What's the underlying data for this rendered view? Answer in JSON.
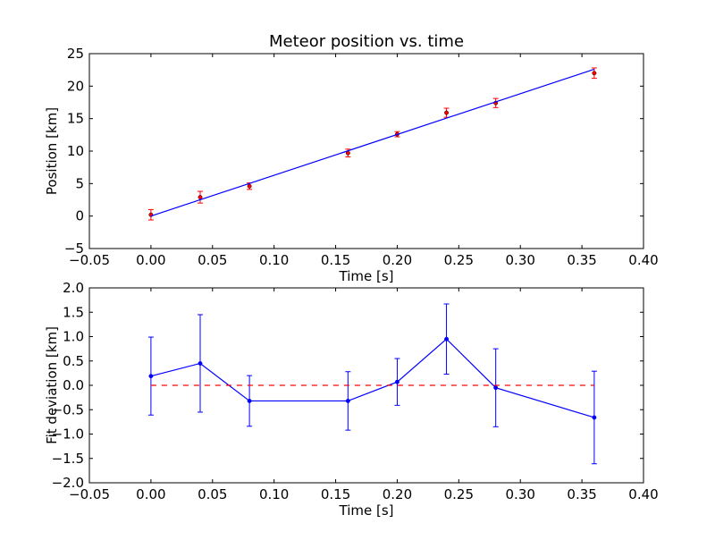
{
  "chart_data": [
    {
      "type": "scatter",
      "title": "Meteor position vs. time",
      "xlabel": "Time [s]",
      "ylabel": "Position [km]",
      "xlim": [
        -0.05,
        0.4
      ],
      "ylim": [
        -5,
        25
      ],
      "xticks": [
        "−0.05",
        "0.00",
        "0.05",
        "0.10",
        "0.15",
        "0.20",
        "0.25",
        "0.30",
        "0.35",
        "0.40"
      ],
      "yticks": [
        "−5",
        "0",
        "5",
        "10",
        "15",
        "20",
        "25"
      ],
      "grid": false,
      "colors": {
        "points": "#ff0000",
        "errorbars": "#ff0000",
        "fit": "#0000ff"
      },
      "series": [
        {
          "kind": "errorbar-points",
          "x": [
            0.0,
            0.04,
            0.08,
            0.16,
            0.2,
            0.24,
            0.28,
            0.36
          ],
          "y": [
            0.2,
            2.9,
            4.6,
            9.7,
            12.6,
            15.9,
            17.4,
            22.0
          ],
          "yerr": [
            0.8,
            0.9,
            0.5,
            0.6,
            0.4,
            0.7,
            0.7,
            0.8
          ]
        },
        {
          "kind": "line",
          "x": [
            0.0,
            0.36
          ],
          "y": [
            0.0,
            22.6
          ]
        }
      ]
    },
    {
      "type": "line",
      "title": "",
      "xlabel": "Time [s]",
      "ylabel": "Fit deviation [km]",
      "xlim": [
        -0.05,
        0.4
      ],
      "ylim": [
        -2.0,
        2.0
      ],
      "xticks": [
        "−0.05",
        "0.00",
        "0.05",
        "0.10",
        "0.15",
        "0.20",
        "0.25",
        "0.30",
        "0.35",
        "0.40"
      ],
      "yticks": [
        "−2.0",
        "−1.5",
        "−1.0",
        "−0.5",
        "0.0",
        "0.5",
        "1.0",
        "1.5",
        "2.0"
      ],
      "grid": false,
      "colors": {
        "series": "#0000ff",
        "zero_line": "#ff0000"
      },
      "series": [
        {
          "kind": "errorbar-line",
          "x": [
            0.0,
            0.04,
            0.08,
            0.16,
            0.2,
            0.24,
            0.28,
            0.36
          ],
          "y": [
            0.19,
            0.45,
            -0.32,
            -0.32,
            0.07,
            0.95,
            -0.05,
            -0.66
          ],
          "yerr": [
            0.8,
            1.0,
            0.52,
            0.6,
            0.48,
            0.72,
            0.8,
            0.95
          ]
        },
        {
          "kind": "dashed-line",
          "x": [
            0.0,
            0.36
          ],
          "y": [
            0.0,
            0.0
          ]
        }
      ]
    }
  ]
}
